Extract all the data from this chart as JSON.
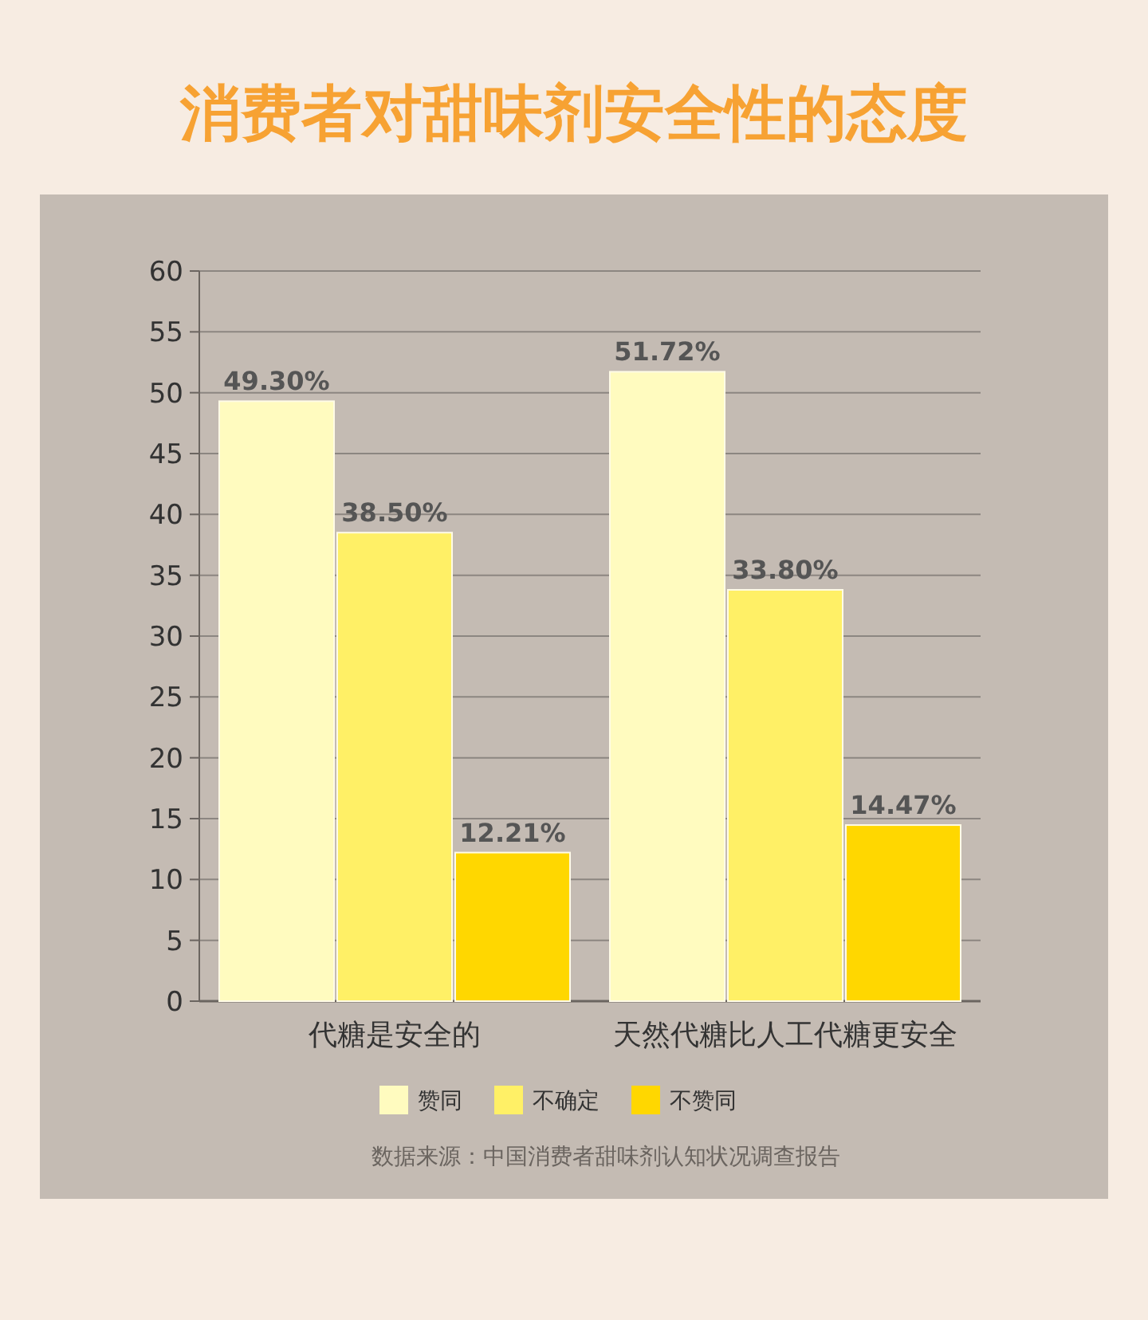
{
  "chart_data": {
    "type": "bar",
    "title": "消费者对甜味剂安全性的态度",
    "categories": [
      "代糖是安全的",
      "天然代糖比人工代糖更安全"
    ],
    "series": [
      {
        "name": "赞同",
        "color": "#fffbbf",
        "values": [
          49.3,
          51.72
        ],
        "value_labels": [
          "49.30%",
          "51.72%"
        ]
      },
      {
        "name": "不确定",
        "color": "#fff066",
        "values": [
          38.5,
          33.8
        ],
        "value_labels": [
          "38.50%",
          "33.80%"
        ]
      },
      {
        "name": "不赞同",
        "color": "#ffd700",
        "values": [
          12.21,
          14.47
        ],
        "value_labels": [
          "12.21%",
          "14.47%"
        ]
      }
    ],
    "ylim": [
      0,
      60
    ],
    "yticks": [
      0,
      5,
      10,
      15,
      20,
      25,
      30,
      35,
      40,
      45,
      50,
      55,
      60
    ],
    "grid": "y",
    "legend": "bottom",
    "annotations": [
      "数据来源：中国消费者甜味剂认知状况调查报告"
    ]
  }
}
